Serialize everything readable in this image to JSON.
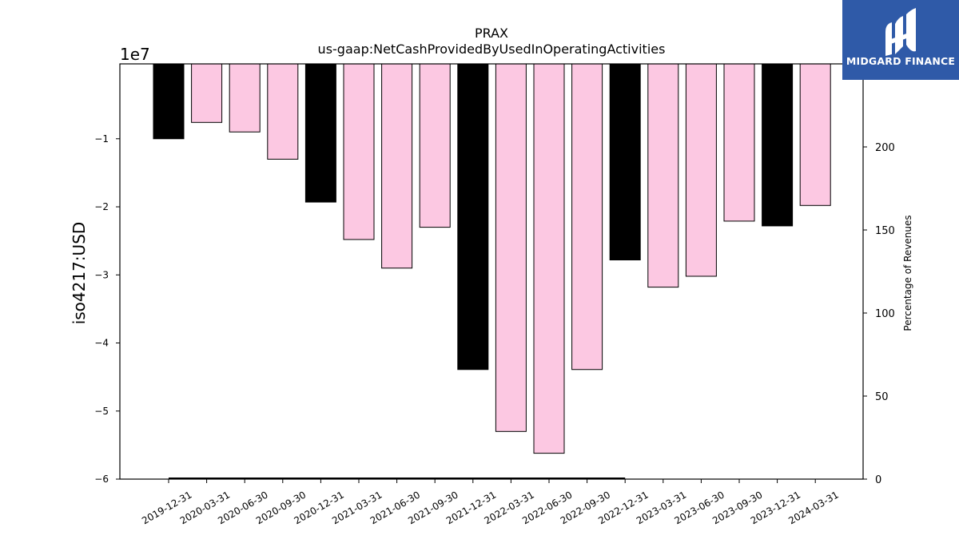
{
  "chart_data": {
    "type": "bar",
    "title": "PRAX",
    "subtitle": "us-gaap:NetCashProvidedByUsedInOperatingActivities",
    "ylabel": "iso4217:USD",
    "y_offset_label": "1e7",
    "y2label": "Percentage of Revenues",
    "categories": [
      "2019-12-31",
      "2020-03-31",
      "2020-06-30",
      "2020-09-30",
      "2020-12-31",
      "2021-03-31",
      "2021-06-30",
      "2021-09-30",
      "2021-12-31",
      "2022-03-31",
      "2022-06-30",
      "2022-09-30",
      "2022-12-31",
      "2023-03-31",
      "2023-06-30",
      "2023-09-30",
      "2023-12-31",
      "2024-03-31"
    ],
    "values": [
      -10000000,
      -7600000,
      -9000000,
      -13000000,
      -19300000,
      -24800000,
      -29000000,
      -23000000,
      -43900000,
      -53000000,
      -56200000,
      -43900000,
      -27800000,
      -31800000,
      -30200000,
      -22100000,
      -22800000,
      -19800000
    ],
    "period_type": [
      "annual",
      "quarterly",
      "quarterly",
      "quarterly",
      "annual",
      "quarterly",
      "quarterly",
      "quarterly",
      "annual",
      "quarterly",
      "quarterly",
      "quarterly",
      "annual",
      "quarterly",
      "quarterly",
      "quarterly",
      "annual",
      "quarterly"
    ],
    "colors": {
      "annual": "#000000",
      "quarterly": "#fcc8e2"
    },
    "ylim": [
      -60000000,
      1000000
    ],
    "yticks": [
      -10000000,
      -20000000,
      -30000000,
      -40000000,
      -50000000,
      -60000000
    ],
    "ytick_labels": [
      "−1",
      "−2",
      "−3",
      "−4",
      "−5",
      "−6"
    ],
    "y2lim": [
      0,
      250
    ],
    "y2ticks": [
      0,
      50,
      100,
      150,
      200
    ],
    "y2tick_labels": [
      "0",
      "50",
      "100",
      "150",
      "200"
    ],
    "percentage_line": {
      "x_from": "2019-12-31",
      "x_to": "2022-12-31",
      "value": 0
    },
    "grid": false,
    "legend": "none"
  },
  "logo": {
    "text": "MIDGARD FINANCE"
  }
}
